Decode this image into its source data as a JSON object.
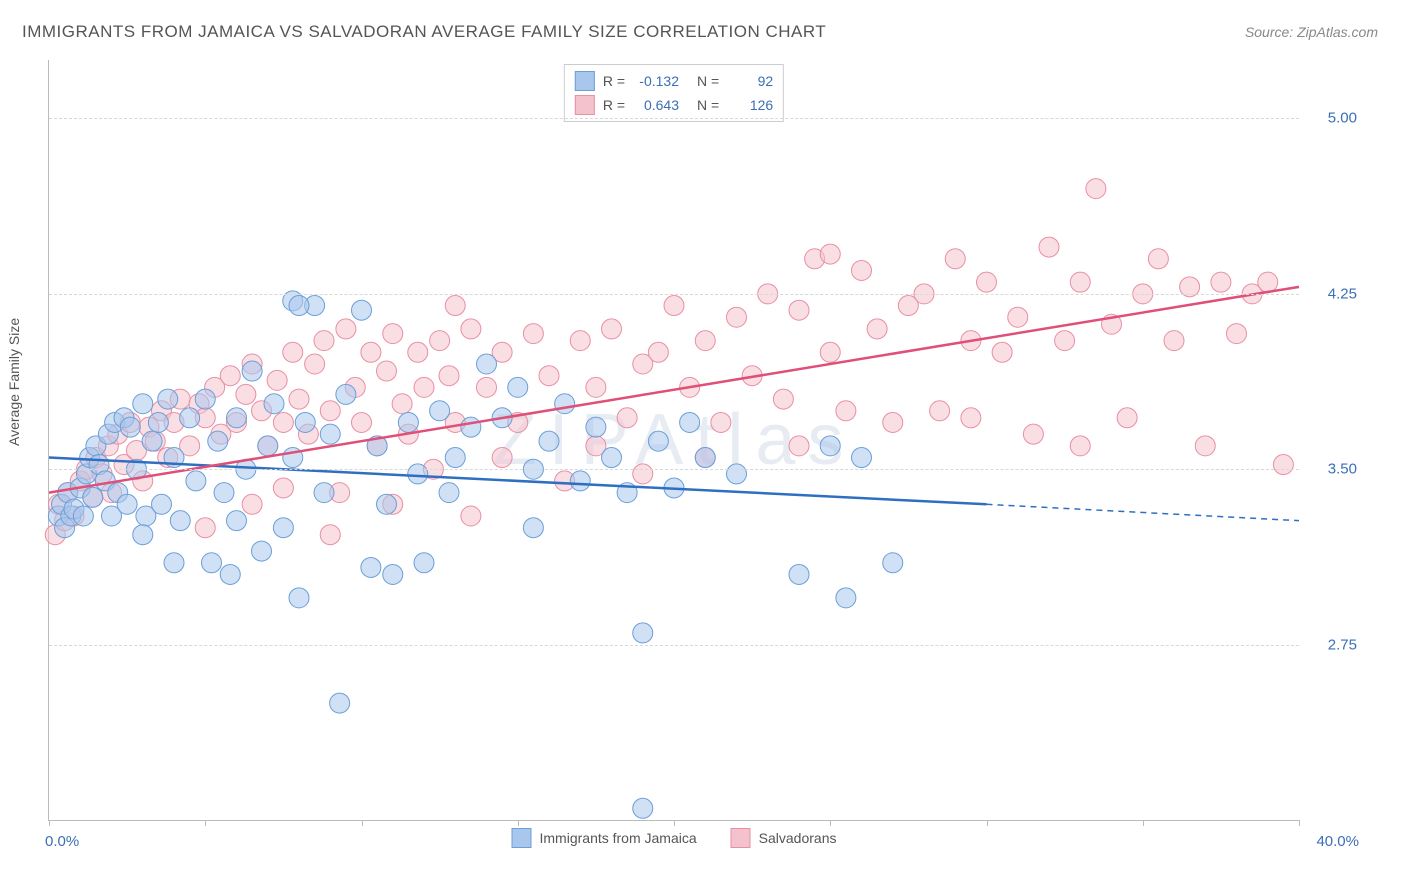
{
  "title": "IMMIGRANTS FROM JAMAICA VS SALVADORAN AVERAGE FAMILY SIZE CORRELATION CHART",
  "source_label": "Source:",
  "source_value": "ZipAtlas.com",
  "y_axis_title": "Average Family Size",
  "watermark": "ZIPAtlas",
  "chart": {
    "type": "scatter",
    "xlim": [
      0,
      40
    ],
    "ylim": [
      2.0,
      5.25
    ],
    "x_ticks": [
      0,
      5,
      10,
      15,
      20,
      25,
      30,
      35,
      40
    ],
    "x_label_min": "0.0%",
    "x_label_max": "40.0%",
    "y_grid": [
      2.75,
      3.5,
      4.25,
      5.0
    ],
    "y_tick_labels": [
      "2.75",
      "3.50",
      "4.25",
      "5.00"
    ],
    "background_color": "#ffffff",
    "grid_color": "#d8d8d8",
    "axis_color": "#bbbbbb",
    "tick_label_color": "#3b6fb6",
    "marker_radius": 10,
    "marker_opacity": 0.55,
    "series": [
      {
        "name": "Immigrants from Jamaica",
        "fill": "#a9c7ec",
        "stroke": "#6b9fd8",
        "line_color": "#2f6fc2",
        "R": "-0.132",
        "N": "92",
        "trend": {
          "x1": 0,
          "y1": 3.55,
          "x2": 30,
          "y2": 3.35,
          "dash_x2": 40,
          "dash_y2": 3.28
        },
        "points": [
          [
            0.3,
            3.3
          ],
          [
            0.4,
            3.35
          ],
          [
            0.5,
            3.25
          ],
          [
            0.6,
            3.4
          ],
          [
            0.7,
            3.3
          ],
          [
            0.8,
            3.33
          ],
          [
            1.0,
            3.42
          ],
          [
            1.1,
            3.3
          ],
          [
            1.2,
            3.48
          ],
          [
            1.3,
            3.55
          ],
          [
            1.4,
            3.38
          ],
          [
            1.5,
            3.6
          ],
          [
            1.6,
            3.52
          ],
          [
            1.8,
            3.45
          ],
          [
            1.9,
            3.65
          ],
          [
            2.0,
            3.3
          ],
          [
            2.1,
            3.7
          ],
          [
            2.2,
            3.4
          ],
          [
            2.4,
            3.72
          ],
          [
            2.5,
            3.35
          ],
          [
            2.6,
            3.68
          ],
          [
            2.8,
            3.5
          ],
          [
            3.0,
            3.78
          ],
          [
            3.1,
            3.3
          ],
          [
            3.3,
            3.62
          ],
          [
            3.5,
            3.7
          ],
          [
            3.6,
            3.35
          ],
          [
            3.8,
            3.8
          ],
          [
            4.0,
            3.55
          ],
          [
            4.2,
            3.28
          ],
          [
            4.5,
            3.72
          ],
          [
            4.7,
            3.45
          ],
          [
            5.0,
            3.8
          ],
          [
            5.2,
            3.1
          ],
          [
            5.4,
            3.62
          ],
          [
            5.6,
            3.4
          ],
          [
            5.8,
            3.05
          ],
          [
            6.0,
            3.72
          ],
          [
            6.3,
            3.5
          ],
          [
            6.5,
            3.92
          ],
          [
            6.8,
            3.15
          ],
          [
            7.0,
            3.6
          ],
          [
            7.2,
            3.78
          ],
          [
            7.5,
            3.25
          ],
          [
            7.8,
            3.55
          ],
          [
            8.0,
            2.95
          ],
          [
            8.2,
            3.7
          ],
          [
            8.5,
            4.2
          ],
          [
            8.8,
            3.4
          ],
          [
            9.0,
            3.65
          ],
          [
            9.3,
            2.5
          ],
          [
            9.5,
            3.82
          ],
          [
            10.0,
            4.18
          ],
          [
            10.3,
            3.08
          ],
          [
            10.5,
            3.6
          ],
          [
            10.8,
            3.35
          ],
          [
            11.0,
            3.05
          ],
          [
            11.5,
            3.7
          ],
          [
            11.8,
            3.48
          ],
          [
            12.0,
            3.1
          ],
          [
            12.5,
            3.75
          ],
          [
            12.8,
            3.4
          ],
          [
            13.0,
            3.55
          ],
          [
            13.5,
            3.68
          ],
          [
            14.0,
            3.95
          ],
          [
            14.5,
            3.72
          ],
          [
            15.0,
            3.85
          ],
          [
            15.5,
            3.5
          ],
          [
            15.5,
            3.25
          ],
          [
            16.0,
            3.62
          ],
          [
            16.5,
            3.78
          ],
          [
            17.0,
            3.45
          ],
          [
            17.5,
            3.68
          ],
          [
            18.0,
            3.55
          ],
          [
            18.5,
            3.4
          ],
          [
            19.0,
            2.8
          ],
          [
            19.0,
            2.05
          ],
          [
            19.5,
            3.62
          ],
          [
            20.0,
            3.42
          ],
          [
            20.5,
            3.7
          ],
          [
            21.0,
            3.55
          ],
          [
            22.0,
            3.48
          ],
          [
            24.0,
            3.05
          ],
          [
            25.0,
            3.6
          ],
          [
            25.5,
            2.95
          ],
          [
            26.0,
            3.55
          ],
          [
            27.0,
            3.1
          ],
          [
            7.8,
            4.22
          ],
          [
            8.0,
            4.2
          ],
          [
            6.0,
            3.28
          ],
          [
            4.0,
            3.1
          ],
          [
            3.0,
            3.22
          ]
        ]
      },
      {
        "name": "Salvadorans",
        "fill": "#f4c2cd",
        "stroke": "#e98fa3",
        "line_color": "#e04f77",
        "R": "0.643",
        "N": "126",
        "trend": {
          "x1": 0,
          "y1": 3.4,
          "x2": 40,
          "y2": 4.28
        },
        "points": [
          [
            0.2,
            3.22
          ],
          [
            0.3,
            3.35
          ],
          [
            0.5,
            3.28
          ],
          [
            0.6,
            3.4
          ],
          [
            0.8,
            3.3
          ],
          [
            1.0,
            3.45
          ],
          [
            1.2,
            3.5
          ],
          [
            1.4,
            3.38
          ],
          [
            1.5,
            3.55
          ],
          [
            1.7,
            3.48
          ],
          [
            1.9,
            3.6
          ],
          [
            2.0,
            3.4
          ],
          [
            2.2,
            3.65
          ],
          [
            2.4,
            3.52
          ],
          [
            2.6,
            3.7
          ],
          [
            2.8,
            3.58
          ],
          [
            3.0,
            3.45
          ],
          [
            3.2,
            3.68
          ],
          [
            3.4,
            3.62
          ],
          [
            3.6,
            3.75
          ],
          [
            3.8,
            3.55
          ],
          [
            4.0,
            3.7
          ],
          [
            4.2,
            3.8
          ],
          [
            4.5,
            3.6
          ],
          [
            4.8,
            3.78
          ],
          [
            5.0,
            3.72
          ],
          [
            5.3,
            3.85
          ],
          [
            5.5,
            3.65
          ],
          [
            5.8,
            3.9
          ],
          [
            6.0,
            3.7
          ],
          [
            6.3,
            3.82
          ],
          [
            6.5,
            3.95
          ],
          [
            6.8,
            3.75
          ],
          [
            7.0,
            3.6
          ],
          [
            7.3,
            3.88
          ],
          [
            7.5,
            3.7
          ],
          [
            7.8,
            4.0
          ],
          [
            8.0,
            3.8
          ],
          [
            8.3,
            3.65
          ],
          [
            8.5,
            3.95
          ],
          [
            8.8,
            4.05
          ],
          [
            9.0,
            3.75
          ],
          [
            9.3,
            3.4
          ],
          [
            9.5,
            4.1
          ],
          [
            9.8,
            3.85
          ],
          [
            10.0,
            3.7
          ],
          [
            10.3,
            4.0
          ],
          [
            10.5,
            3.6
          ],
          [
            10.8,
            3.92
          ],
          [
            11.0,
            4.08
          ],
          [
            11.3,
            3.78
          ],
          [
            11.5,
            3.65
          ],
          [
            11.8,
            4.0
          ],
          [
            12.0,
            3.85
          ],
          [
            12.3,
            3.5
          ],
          [
            12.5,
            4.05
          ],
          [
            12.8,
            3.9
          ],
          [
            13.0,
            3.7
          ],
          [
            13.5,
            4.1
          ],
          [
            13.5,
            3.3
          ],
          [
            14.0,
            3.85
          ],
          [
            14.5,
            4.0
          ],
          [
            15.0,
            3.7
          ],
          [
            15.5,
            4.08
          ],
          [
            16.0,
            3.9
          ],
          [
            16.5,
            3.45
          ],
          [
            17.0,
            4.05
          ],
          [
            17.5,
            3.85
          ],
          [
            18.0,
            4.1
          ],
          [
            18.5,
            3.72
          ],
          [
            19.0,
            3.95
          ],
          [
            19.0,
            3.48
          ],
          [
            19.5,
            4.0
          ],
          [
            20.0,
            4.2
          ],
          [
            20.5,
            3.85
          ],
          [
            21.0,
            4.05
          ],
          [
            21.5,
            3.7
          ],
          [
            22.0,
            4.15
          ],
          [
            22.5,
            3.9
          ],
          [
            23.0,
            4.25
          ],
          [
            23.5,
            3.8
          ],
          [
            24.0,
            4.18
          ],
          [
            24.5,
            4.4
          ],
          [
            25.0,
            4.0
          ],
          [
            25.0,
            4.42
          ],
          [
            25.5,
            3.75
          ],
          [
            26.0,
            4.35
          ],
          [
            26.5,
            4.1
          ],
          [
            27.0,
            3.7
          ],
          [
            27.5,
            4.2
          ],
          [
            28.0,
            4.25
          ],
          [
            28.5,
            3.75
          ],
          [
            29.0,
            4.4
          ],
          [
            29.5,
            4.05
          ],
          [
            29.5,
            3.72
          ],
          [
            30.0,
            4.3
          ],
          [
            30.5,
            4.0
          ],
          [
            31.0,
            4.15
          ],
          [
            31.5,
            3.65
          ],
          [
            32.0,
            4.45
          ],
          [
            32.5,
            4.05
          ],
          [
            33.0,
            4.3
          ],
          [
            33.0,
            3.6
          ],
          [
            33.5,
            4.7
          ],
          [
            34.0,
            4.12
          ],
          [
            34.5,
            3.72
          ],
          [
            35.0,
            4.25
          ],
          [
            35.5,
            4.4
          ],
          [
            36.0,
            4.05
          ],
          [
            36.5,
            4.28
          ],
          [
            37.0,
            3.6
          ],
          [
            37.5,
            4.3
          ],
          [
            38.0,
            4.08
          ],
          [
            38.5,
            4.25
          ],
          [
            39.0,
            4.3
          ],
          [
            39.5,
            3.52
          ],
          [
            13.0,
            4.2
          ],
          [
            9.0,
            3.22
          ],
          [
            5.0,
            3.25
          ],
          [
            6.5,
            3.35
          ],
          [
            7.5,
            3.42
          ],
          [
            11.0,
            3.35
          ],
          [
            14.5,
            3.55
          ],
          [
            17.5,
            3.6
          ],
          [
            21.0,
            3.55
          ],
          [
            24.0,
            3.6
          ]
        ]
      }
    ]
  },
  "legend_labels": {
    "R": "R =",
    "N": "N ="
  }
}
